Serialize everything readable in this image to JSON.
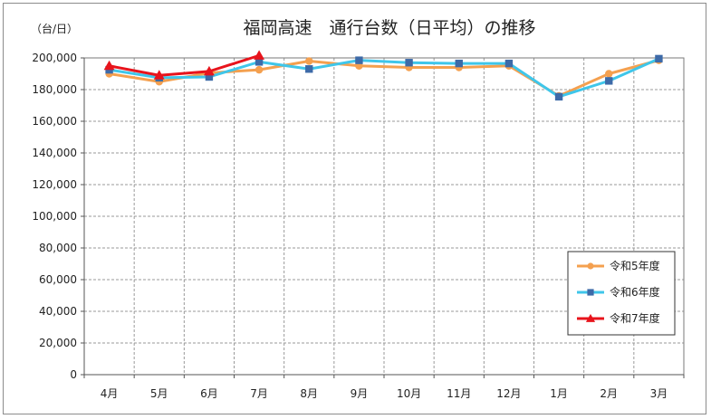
{
  "chart_data": {
    "type": "line",
    "title": "福岡高速　通行台数（日平均）の推移",
    "unit_label": "（台/日）",
    "categories": [
      "4月",
      "5月",
      "6月",
      "7月",
      "8月",
      "9月",
      "10月",
      "11月",
      "12月",
      "1月",
      "2月",
      "3月"
    ],
    "ylim": [
      0,
      200000
    ],
    "yticks": [
      0,
      20000,
      40000,
      60000,
      80000,
      100000,
      120000,
      140000,
      160000,
      180000,
      200000
    ],
    "ytick_labels": [
      "0",
      "20,000",
      "40,000",
      "60,000",
      "80,000",
      "100,000",
      "120,000",
      "140,000",
      "160,000",
      "180,000",
      "200,000"
    ],
    "grid": true,
    "legend_position": "bottom-right",
    "series": [
      {
        "name": "令和5年度",
        "color": "#f4a04f",
        "marker": "circle",
        "values": [
          190000,
          185000,
          190500,
          192500,
          198000,
          195000,
          194000,
          194000,
          195000,
          176000,
          190000,
          198500
        ]
      },
      {
        "name": "令和6年度",
        "color": "#3fc6ea",
        "marker": "square",
        "values": [
          192500,
          187500,
          188000,
          197500,
          193000,
          198500,
          197000,
          196500,
          196500,
          175500,
          185500,
          199500
        ]
      },
      {
        "name": "令和7年度",
        "color": "#e8141c",
        "marker": "triangle",
        "values": [
          195000,
          189000,
          191500,
          201500,
          null,
          null,
          null,
          null,
          null,
          null,
          null,
          null
        ]
      }
    ]
  }
}
